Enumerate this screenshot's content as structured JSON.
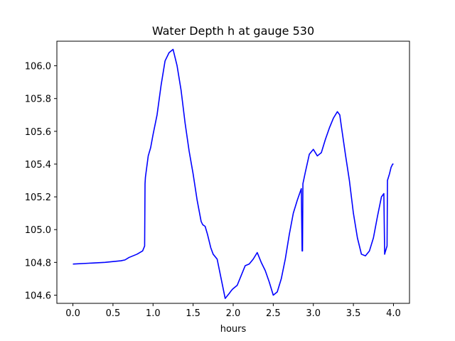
{
  "chart_data": {
    "type": "line",
    "title": "Water Depth h at gauge 530",
    "xlabel": "hours",
    "ylabel": "",
    "xlim": [
      -0.2,
      4.2
    ],
    "ylim": [
      104.55,
      106.15
    ],
    "xticks": [
      0.0,
      0.5,
      1.0,
      1.5,
      2.0,
      2.5,
      3.0,
      3.5,
      4.0
    ],
    "xtick_labels": [
      "0.0",
      "0.5",
      "1.0",
      "1.5",
      "2.0",
      "2.5",
      "3.0",
      "3.5",
      "4.0"
    ],
    "yticks": [
      104.6,
      104.8,
      105.0,
      105.2,
      105.4,
      105.6,
      105.8,
      106.0
    ],
    "ytick_labels": [
      "104.6",
      "104.8",
      "105.0",
      "105.2",
      "105.4",
      "105.6",
      "105.8",
      "106.0"
    ],
    "grid": false,
    "series": [
      {
        "color": "#0000ff",
        "x": [
          0.0,
          0.2,
          0.4,
          0.6,
          0.65,
          0.7,
          0.8,
          0.87,
          0.895,
          0.9,
          0.905,
          0.94,
          0.97,
          1.0,
          1.05,
          1.1,
          1.15,
          1.2,
          1.25,
          1.3,
          1.35,
          1.4,
          1.45,
          1.5,
          1.55,
          1.6,
          1.62,
          1.65,
          1.68,
          1.72,
          1.75,
          1.8,
          1.85,
          1.9,
          1.95,
          1.98,
          2.0,
          2.05,
          2.1,
          2.15,
          2.2,
          2.25,
          2.3,
          2.35,
          2.4,
          2.45,
          2.5,
          2.55,
          2.6,
          2.65,
          2.7,
          2.75,
          2.8,
          2.85,
          2.86,
          2.865,
          2.87,
          2.9,
          2.95,
          3.0,
          3.05,
          3.1,
          3.15,
          3.2,
          3.25,
          3.3,
          3.33,
          3.35,
          3.4,
          3.45,
          3.5,
          3.55,
          3.6,
          3.65,
          3.7,
          3.75,
          3.8,
          3.85,
          3.88,
          3.89,
          3.895,
          3.92,
          3.925,
          3.95,
          3.97,
          3.99,
          4.0
        ],
        "y": [
          104.79,
          104.795,
          104.8,
          104.81,
          104.815,
          104.83,
          104.85,
          104.87,
          104.9,
          105.28,
          105.32,
          105.45,
          105.5,
          105.58,
          105.7,
          105.88,
          106.03,
          106.08,
          106.1,
          106.0,
          105.85,
          105.65,
          105.48,
          105.34,
          105.18,
          105.05,
          105.03,
          105.02,
          104.97,
          104.89,
          104.85,
          104.82,
          104.7,
          104.58,
          104.61,
          104.63,
          104.64,
          104.66,
          104.72,
          104.78,
          104.79,
          104.82,
          104.86,
          104.8,
          104.75,
          104.68,
          104.6,
          104.62,
          104.7,
          104.82,
          104.97,
          105.1,
          105.18,
          105.25,
          104.87,
          104.87,
          105.28,
          105.35,
          105.46,
          105.49,
          105.45,
          105.47,
          105.55,
          105.62,
          105.68,
          105.72,
          105.7,
          105.63,
          105.46,
          105.3,
          105.1,
          104.95,
          104.85,
          104.84,
          104.87,
          104.95,
          105.08,
          105.2,
          105.22,
          104.85,
          104.86,
          104.9,
          105.3,
          105.34,
          105.38,
          105.4,
          105.4
        ]
      }
    ]
  }
}
